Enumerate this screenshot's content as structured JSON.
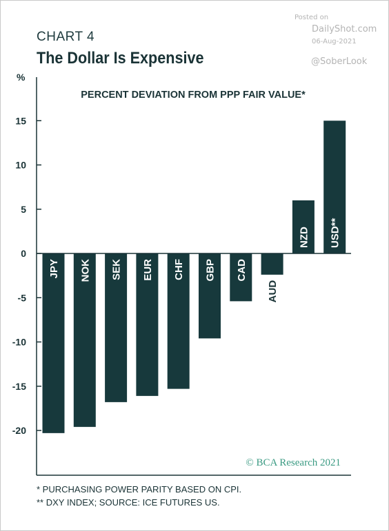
{
  "header": {
    "chart_label": "CHART 4",
    "title": "The Dollar Is Expensive",
    "unit": "%"
  },
  "watermark": {
    "posted": "Posted on",
    "site": "DailyShot.com",
    "date": "06-Aug-2021",
    "handle": "@SoberLook"
  },
  "colors": {
    "bar": "#17393c",
    "text": "#1a3336",
    "copyright": "#3a9a82"
  },
  "chart_data": {
    "type": "bar",
    "title": "PERCENT DEVIATION FROM PPP FAIR VALUE*",
    "ylabel": "%",
    "ylim": [
      -22.5,
      17.5
    ],
    "yticks": [
      15,
      10,
      5,
      0,
      -5,
      -10,
      -15,
      -20
    ],
    "categories": [
      "JPY",
      "NOK",
      "SEK",
      "EUR",
      "CHF",
      "GBP",
      "CAD",
      "AUD",
      "NZD",
      "USD**"
    ],
    "values": [
      -20.3,
      -19.6,
      -16.8,
      -16.1,
      -15.3,
      -9.6,
      -5.4,
      -2.4,
      6.0,
      15.0
    ],
    "grid": false,
    "copyright": "© BCA Research 2021"
  },
  "footnotes": [
    "*  PURCHASING POWER PARITY BASED ON CPI.",
    "** DXY INDEX; SOURCE: ICE FUTURES US."
  ]
}
